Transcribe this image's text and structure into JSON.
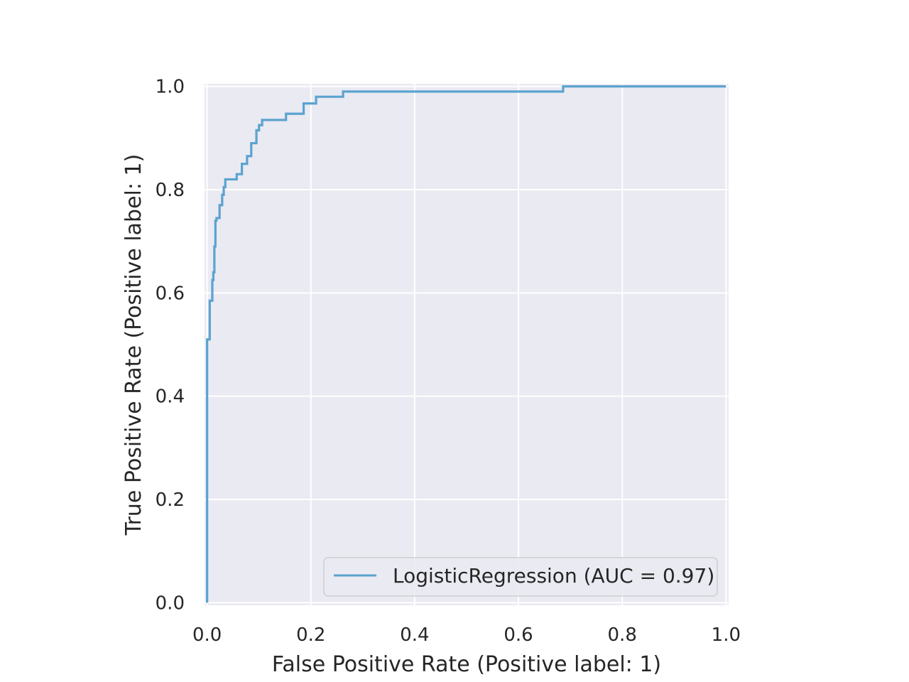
{
  "chart_data": {
    "type": "line",
    "title": "",
    "xlabel": "False Positive Rate (Positive label: 1)",
    "ylabel": "True Positive Rate (Positive label: 1)",
    "xlim": [
      -0.005,
      1.005
    ],
    "ylim": [
      -0.005,
      1.005
    ],
    "x_ticks": [
      0.0,
      0.2,
      0.4,
      0.6,
      0.8,
      1.0
    ],
    "y_ticks": [
      0.0,
      0.2,
      0.4,
      0.6,
      0.8,
      1.0
    ],
    "x_tick_labels": [
      "0.0",
      "0.2",
      "0.4",
      "0.6",
      "0.8",
      "1.0"
    ],
    "y_tick_labels": [
      "0.0",
      "0.2",
      "0.4",
      "0.6",
      "0.8",
      "1.0"
    ],
    "grid": true,
    "legend_position": "lower-right",
    "colors": {
      "plot_background": "#eaeaf2",
      "grid": "#ffffff",
      "line": "#5ba3cf",
      "text": "#262626"
    },
    "series": [
      {
        "name": "LogisticRegression (AUC = 0.97)",
        "x": [
          0.0,
          0.0,
          0.0,
          0.005,
          0.005,
          0.01,
          0.01,
          0.012,
          0.012,
          0.014,
          0.014,
          0.016,
          0.016,
          0.018,
          0.018,
          0.024,
          0.024,
          0.029,
          0.029,
          0.032,
          0.032,
          0.035,
          0.035,
          0.057,
          0.057,
          0.067,
          0.067,
          0.077,
          0.077,
          0.085,
          0.085,
          0.095,
          0.095,
          0.1,
          0.1,
          0.106,
          0.106,
          0.152,
          0.152,
          0.186,
          0.186,
          0.21,
          0.21,
          0.262,
          0.262,
          0.686,
          0.686,
          1.0
        ],
        "y": [
          0.0,
          0.51,
          0.51,
          0.51,
          0.585,
          0.585,
          0.625,
          0.625,
          0.64,
          0.64,
          0.69,
          0.69,
          0.74,
          0.74,
          0.745,
          0.745,
          0.77,
          0.77,
          0.79,
          0.79,
          0.805,
          0.805,
          0.82,
          0.82,
          0.83,
          0.83,
          0.85,
          0.85,
          0.865,
          0.865,
          0.89,
          0.89,
          0.915,
          0.915,
          0.925,
          0.925,
          0.935,
          0.935,
          0.947,
          0.947,
          0.967,
          0.967,
          0.98,
          0.98,
          0.99,
          0.99,
          1.0,
          1.0
        ]
      }
    ]
  }
}
